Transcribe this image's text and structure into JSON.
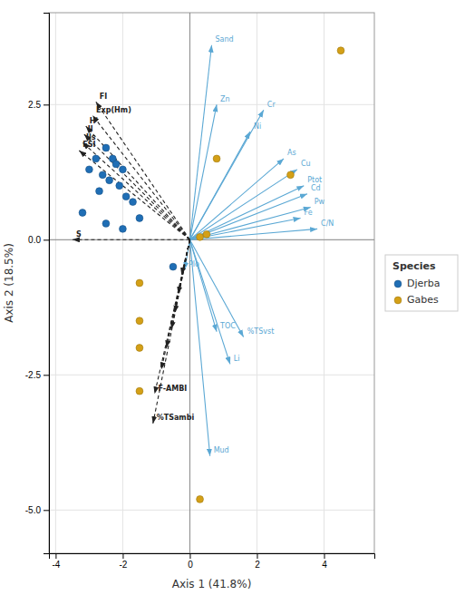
{
  "chart_data": {
    "type": "scatter",
    "xlabel": "Axis 1 (41.8%)",
    "ylabel": "Axis 2 (18.5%)",
    "xlim": [
      -4.2,
      5.5
    ],
    "ylim": [
      -5.8,
      4.2
    ],
    "xticks": [
      -4,
      -2,
      0,
      2,
      4
    ],
    "yticks": [
      {
        "value": -5.0,
        "label": "-5.0"
      },
      {
        "value": -2.5,
        "label": "-2.5"
      },
      {
        "value": 0.0,
        "label": "0.0"
      },
      {
        "value": 2.5,
        "label": "2.5"
      }
    ],
    "grid": true,
    "legend": "right",
    "legend_title": "Species",
    "series": [
      {
        "name": "Djerba",
        "type": "scatter",
        "marker": "circle",
        "color": "#1f6eb5",
        "x": [
          -2.8,
          -3.0,
          -2.5,
          -2.3,
          -2.6,
          -2.2,
          -2.0,
          -2.4,
          -2.1,
          -2.7,
          -1.9,
          -1.7,
          -3.2,
          -1.5,
          -2.5,
          -2.0,
          -0.5
        ],
        "values": [
          1.5,
          1.3,
          1.7,
          1.5,
          1.2,
          1.4,
          1.3,
          1.1,
          1.0,
          0.9,
          0.8,
          0.7,
          0.5,
          0.4,
          0.3,
          0.2,
          -0.5
        ]
      },
      {
        "name": "Gabes",
        "type": "scatter",
        "marker": "circle",
        "color": "#d4a017",
        "x": [
          4.5,
          0.8,
          3.0,
          0.3,
          0.5,
          -1.5,
          -1.5,
          -1.5,
          -1.5,
          0.3
        ],
        "values": [
          3.5,
          1.5,
          1.2,
          0.05,
          0.1,
          -0.8,
          -1.5,
          -2.0,
          -2.8,
          -4.8
        ]
      },
      {
        "type": "arrow",
        "line_style": "solid",
        "color": "#5ba8d4",
        "x": [
          0.65,
          0.8,
          2.2,
          1.8,
          2.8,
          3.2,
          3.4,
          3.5,
          3.6,
          3.3,
          3.8,
          -0.15,
          0.8,
          1.6,
          1.2,
          0.6
        ],
        "values": [
          3.6,
          2.5,
          2.4,
          2.0,
          1.5,
          1.3,
          1.0,
          0.85,
          0.6,
          0.4,
          0.2,
          -0.55,
          -1.7,
          -1.8,
          -2.3,
          -4.0
        ],
        "labels": [
          "Sand",
          "Zn",
          "Cr",
          "Ni",
          "As",
          "Cu",
          "Ptot",
          "Cd",
          "Pw",
          "Fe",
          "C/N",
          "Plo",
          "TOC",
          "%TSvst",
          "Li",
          "Mud"
        ]
      },
      {
        "type": "arrow",
        "line_style": "dashed",
        "color": "#222222",
        "x": [
          -3.5,
          -2.8,
          -2.9,
          -3.1,
          -3.15,
          -3.2,
          -3.3,
          -0.25,
          -0.35,
          -0.45,
          -0.55,
          -0.7,
          -0.85,
          -1.05,
          -1.1
        ],
        "values": [
          0.0,
          2.55,
          2.3,
          2.1,
          1.95,
          1.8,
          1.65,
          -0.65,
          -1.0,
          -1.35,
          -1.65,
          -2.0,
          -2.4,
          -2.85,
          -3.4
        ],
        "labels": [
          "S",
          "FI",
          "Exp(Hm)",
          "H'",
          "Il",
          "Ils",
          "FSI",
          null,
          null,
          null,
          null,
          null,
          null,
          "F-AMBI",
          "%TSambi"
        ]
      }
    ]
  }
}
